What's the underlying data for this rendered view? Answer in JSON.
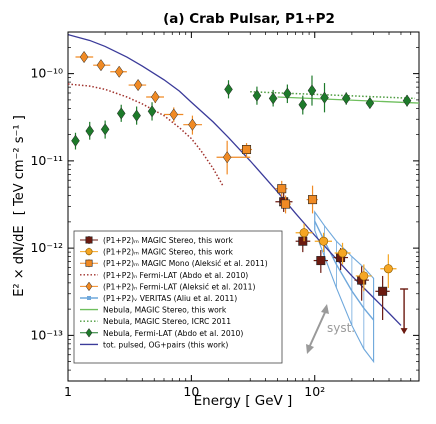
{
  "chart_data": {
    "type": "scatter",
    "title": "(a) Crab Pulsar, P1+P2",
    "xlabel": "Energy [ GeV ]",
    "ylabel_main": "E² × dN/dE",
    "ylabel_units": "[ TeV cm⁻² s⁻¹ ]",
    "xscale": "log",
    "yscale": "log",
    "xlim": [
      1,
      700
    ],
    "ylim": [
      3e-14,
      3e-10
    ],
    "x_ticks": [
      {
        "value": 1,
        "label": "1"
      },
      {
        "value": 10,
        "label": "10"
      },
      {
        "value": 100,
        "label": "10²"
      }
    ],
    "y_ticks": [
      {
        "value": 1e-13,
        "label": "10⁻¹³"
      },
      {
        "value": 1e-12,
        "label": "10⁻¹²"
      },
      {
        "value": 1e-11,
        "label": "10⁻¹¹"
      },
      {
        "value": 1e-10,
        "label": "10⁻¹⁰"
      }
    ],
    "annotation": "syst.",
    "series": [
      {
        "name": "(P1+P2)ₘ MAGIC Stereo, this work",
        "marker": "square",
        "color": "#6b1a10",
        "points": [
          {
            "x": 56,
            "y": 3.4e-12,
            "xerr": [
              48,
              66
            ],
            "yerr": [
              2.6e-12,
              4.3e-12
            ]
          },
          {
            "x": 80,
            "y": 1.2e-12,
            "xerr": [
              70,
              92
            ],
            "yerr": [
              9e-13,
              1.5e-12
            ]
          },
          {
            "x": 112,
            "y": 7.2e-13,
            "xerr": [
              98,
              128
            ],
            "yerr": [
              5.2e-13,
              9.5e-13
            ]
          },
          {
            "x": 162,
            "y": 7.8e-13,
            "xerr": [
              142,
              186
            ],
            "yerr": [
              5.6e-13,
              1e-12
            ]
          },
          {
            "x": 240,
            "y": 4.3e-13,
            "xerr": [
              210,
              275
            ],
            "yerr": [
              2.5e-13,
              6.2e-13
            ]
          },
          {
            "x": 355,
            "y": 3.2e-13,
            "xerr": [
              310,
              405
            ],
            "yerr": [
              1.5e-13,
              4.8e-13
            ]
          }
        ],
        "upper_limits": [
          {
            "x": 530,
            "y": 3.4e-13
          }
        ]
      },
      {
        "name": "(P1+P2)ₘ MAGIC Stereo, this work",
        "marker": "circle",
        "color": "#f5a623",
        "points": [
          {
            "x": 82,
            "y": 1.5e-12,
            "xerr": [
              70,
              96
            ],
            "yerr": [
              1.2e-12,
              1.9e-12
            ]
          },
          {
            "x": 118,
            "y": 1.2e-12,
            "xerr": [
              100,
              138
            ],
            "yerr": [
              9e-13,
              1.5e-12
            ]
          },
          {
            "x": 168,
            "y": 8.8e-13,
            "xerr": [
              145,
              195
            ],
            "yerr": [
              6.5e-13,
              1.15e-12
            ]
          },
          {
            "x": 250,
            "y": 4.8e-13,
            "xerr": [
              215,
              290
            ],
            "yerr": [
              3.2e-13,
              6.5e-13
            ]
          },
          {
            "x": 395,
            "y": 5.8e-13,
            "xerr": [
              340,
              460
            ],
            "yerr": [
              3.5e-13,
              8.5e-13
            ]
          }
        ]
      },
      {
        "name": "(P1+P2)ₘ MAGIC Mono (Aleksić et al. 2011)",
        "marker": "square",
        "color": "#f08a24",
        "points": [
          {
            "x": 28,
            "y": 1.35e-11,
            "xerr": [
              25,
              31
            ],
            "yerr": [
              1.1e-11,
              1.6e-11
            ]
          },
          {
            "x": 54,
            "y": 4.8e-12,
            "xerr": [
              48,
              60
            ],
            "yerr": [
              3.9e-12,
              5.9e-12
            ]
          },
          {
            "x": 58,
            "y": 3.2e-12,
            "xerr": [
              52,
              64
            ],
            "yerr": [
              2.5e-12,
              4e-12
            ]
          },
          {
            "x": 96,
            "y": 3.6e-12,
            "xerr": [
              86,
              106
            ],
            "yerr": [
              2.5e-12,
              5.2e-12
            ]
          }
        ]
      },
      {
        "name": "(P1+P2)ₙ Fermi-LAT (Abdo et al. 2010)",
        "style": "dotted-line",
        "color": "#a0322d",
        "x": [
          1,
          1.5,
          2,
          3,
          4,
          6,
          8,
          10,
          12,
          15,
          18
        ],
        "y": [
          7.6e-11,
          7.2e-11,
          6.6e-11,
          5.4e-11,
          4.5e-11,
          3.3e-11,
          2.4e-11,
          1.8e-11,
          1.3e-11,
          8.2e-12,
          5.2e-12
        ]
      },
      {
        "name": "(P1+P2)ₙ Fermi-LAT (Aleksić et al. 2011)",
        "marker": "diamond",
        "color": "#f08a24",
        "points": [
          {
            "x": 1.35,
            "y": 1.55e-10,
            "xerr": [
              1.15,
              1.6
            ],
            "yerr": [
              1.4e-10,
              1.7e-10
            ]
          },
          {
            "x": 1.85,
            "y": 1.25e-10,
            "xerr": [
              1.6,
              2.2
            ],
            "yerr": [
              1.12e-10,
              1.4e-10
            ]
          },
          {
            "x": 2.6,
            "y": 1.05e-10,
            "xerr": [
              2.2,
              3.0
            ],
            "yerr": [
              9.4e-11,
              1.17e-10
            ]
          },
          {
            "x": 3.7,
            "y": 7.4e-11,
            "xerr": [
              3.1,
              4.3
            ],
            "yerr": [
              6.5e-11,
              8.4e-11
            ]
          },
          {
            "x": 5.1,
            "y": 5.4e-11,
            "xerr": [
              4.3,
              6.0
            ],
            "yerr": [
              4.6e-11,
              6.3e-11
            ]
          },
          {
            "x": 7.2,
            "y": 3.4e-11,
            "xerr": [
              6.0,
              8.6
            ],
            "yerr": [
              2.8e-11,
              4.1e-11
            ]
          },
          {
            "x": 10.2,
            "y": 2.6e-11,
            "xerr": [
              8.6,
              12.2
            ],
            "yerr": [
              2e-11,
              3.3e-11
            ]
          },
          {
            "x": 19.5,
            "y": 1.1e-11,
            "xerr": [
              16,
              30
            ],
            "yerr": [
              7e-12,
              1.7e-11
            ]
          }
        ]
      },
      {
        "name": "(P1+P2)ᵥ VERITAS (Aliu et al. 2011)",
        "style": "band",
        "color": "#6fa8dc",
        "x": [
          100,
          120,
          150,
          200,
          250,
          300
        ],
        "y_low": [
          1.6e-12,
          8e-13,
          3.5e-13,
          1.3e-13,
          7e-14,
          5e-14
        ],
        "y_high": [
          2.6e-12,
          1.8e-12,
          1.2e-12,
          8e-13,
          6e-13,
          4.5e-13
        ]
      },
      {
        "name": "Nebula, MAGIC Stereo, this work",
        "style": "solid-line",
        "color": "#6fbf5e",
        "x": [
          50,
          700
        ],
        "y": [
          5.4e-11,
          4.6e-11
        ]
      },
      {
        "name": "Nebula, MAGIC Stereo, ICRC 2011",
        "style": "dotted-line",
        "color": "#4a9a3c",
        "x": [
          30,
          650
        ],
        "y": [
          6.2e-11,
          5.2e-11
        ]
      },
      {
        "name": "Nebula, Fermi-LAT (Abdo et al. 2010)",
        "marker": "diamond",
        "color": "#1d7a2a",
        "points": [
          {
            "x": 1.15,
            "y": 1.7e-11,
            "yerr": [
              1.35e-11,
              2.1e-11
            ]
          },
          {
            "x": 1.5,
            "y": 2.2e-11,
            "yerr": [
              1.75e-11,
              2.8e-11
            ]
          },
          {
            "x": 2.0,
            "y": 2.3e-11,
            "yerr": [
              1.8e-11,
              2.9e-11
            ]
          },
          {
            "x": 2.7,
            "y": 3.5e-11,
            "yerr": [
              2.8e-11,
              4.4e-11
            ]
          },
          {
            "x": 3.6,
            "y": 3.3e-11,
            "yerr": [
              2.6e-11,
              4.2e-11
            ]
          },
          {
            "x": 4.8,
            "y": 3.7e-11,
            "yerr": [
              2.9e-11,
              4.7e-11
            ]
          },
          {
            "x": 20,
            "y": 6.6e-11,
            "yerr": [
              5.2e-11,
              8.4e-11
            ]
          },
          {
            "x": 34,
            "y": 5.6e-11,
            "yerr": [
              4.4e-11,
              7.1e-11
            ]
          },
          {
            "x": 46,
            "y": 5.2e-11,
            "yerr": [
              4.2e-11,
              6.5e-11
            ]
          },
          {
            "x": 60,
            "y": 5.9e-11,
            "yerr": [
              4.6e-11,
              7.5e-11
            ]
          },
          {
            "x": 80,
            "y": 4.4e-11,
            "yerr": [
              3.4e-11,
              5.6e-11
            ]
          },
          {
            "x": 95,
            "y": 6.4e-11,
            "yerr": [
              4.3e-11,
              9.5e-11
            ]
          },
          {
            "x": 120,
            "y": 5.3e-11,
            "yerr": [
              3.6e-11,
              7.8e-11
            ]
          },
          {
            "x": 180,
            "y": 5.2e-11,
            "yerr": [
              4.4e-11,
              6.1e-11
            ]
          },
          {
            "x": 280,
            "y": 4.6e-11,
            "yerr": [
              4e-11,
              5.3e-11
            ]
          },
          {
            "x": 560,
            "y": 4.9e-11,
            "yerr": [
              4.2e-11,
              5.7e-11
            ]
          }
        ]
      },
      {
        "name": "tot. pulsed, OG+pairs (this work)",
        "style": "solid-line",
        "color": "#3b3b9a",
        "x": [
          1,
          1.5,
          2,
          3,
          4,
          6,
          8,
          10,
          15,
          20,
          30,
          50,
          70,
          100,
          150,
          200,
          300,
          400,
          500
        ],
        "y": [
          2.8e-10,
          2.4e-10,
          2.05e-10,
          1.55e-10,
          1.22e-10,
          8.5e-11,
          6.3e-11,
          4.7e-11,
          2.8e-11,
          1.85e-11,
          1e-11,
          4.4e-12,
          2.5e-12,
          1.4e-12,
          7.5e-13,
          4.8e-13,
          2.7e-13,
          1.8e-13,
          1.3e-13
        ]
      }
    ]
  }
}
